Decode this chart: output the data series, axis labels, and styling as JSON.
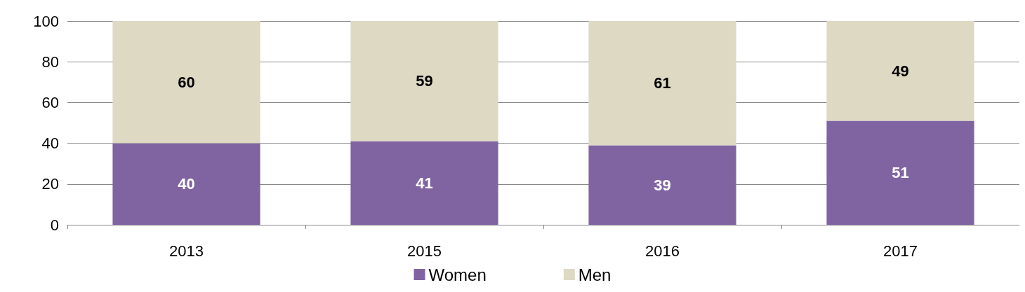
{
  "chart_data": {
    "type": "bar",
    "stacked": true,
    "categories": [
      "2013",
      "2015",
      "2016",
      "2017"
    ],
    "series": [
      {
        "name": "Women",
        "color": "#8064a2",
        "values": [
          40,
          41,
          39,
          51
        ]
      },
      {
        "name": "Men",
        "color": "#ddd9c3",
        "values": [
          60,
          59,
          61,
          49
        ]
      }
    ],
    "ylim": [
      0,
      100
    ],
    "yticks": [
      0,
      20,
      40,
      60,
      80,
      100
    ],
    "grid": "y",
    "legend": "bottom",
    "data_labels": true
  }
}
